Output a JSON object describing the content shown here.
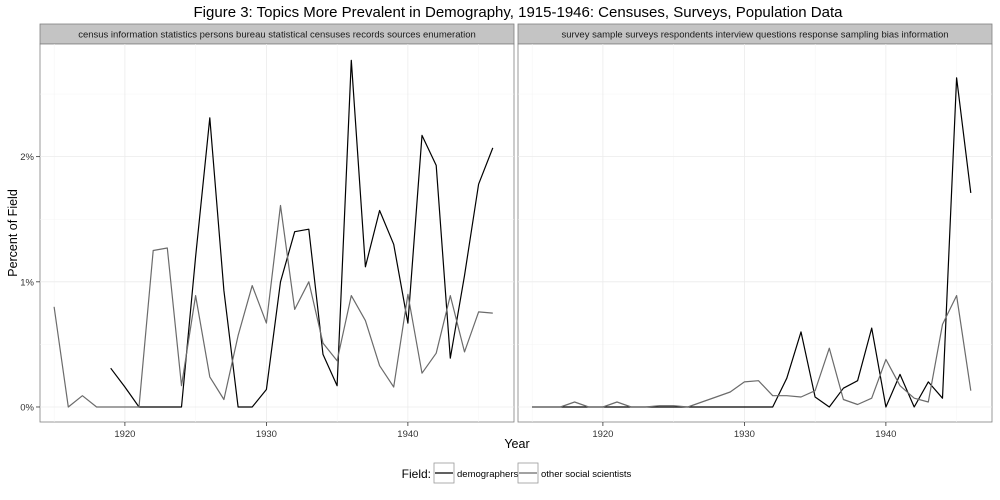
{
  "chart_data": {
    "type": "line",
    "title": "Figure 3: Topics More Prevalent in Demography, 1915-1946: Censuses, Surveys, Population Data",
    "xlabel": "Year",
    "ylabel": "Percent of Field",
    "xlim": [
      1914,
      1947.5
    ],
    "ylim": [
      -0.12,
      2.9
    ],
    "x_ticks": [
      1920,
      1930,
      1940
    ],
    "y_ticks": [
      0,
      1,
      2
    ],
    "y_tick_labels": [
      "0%",
      "1%",
      "2%"
    ],
    "legend": {
      "title": "Field:",
      "position": "bottom",
      "entries": [
        {
          "name": "demographers",
          "color": "#000000"
        },
        {
          "name": "other social scientists",
          "color": "#6b6b6b"
        }
      ]
    },
    "panels": [
      {
        "strip_label": "census information statistics persons bureau statistical censuses records sources enumeration",
        "series": [
          {
            "name": "demographers",
            "color": "#000000",
            "x": [
              1919,
              1920,
              1921,
              1922,
              1923,
              1924,
              1925,
              1926,
              1927,
              1928,
              1929,
              1930,
              1931,
              1932,
              1933,
              1934,
              1935,
              1936,
              1937,
              1938,
              1939,
              1940,
              1941,
              1942,
              1943,
              1944,
              1945,
              1946
            ],
            "y": [
              0.31,
              0.16,
              0.0,
              0.0,
              0.0,
              0.0,
              1.2,
              2.31,
              0.93,
              0.0,
              0.0,
              0.14,
              1.0,
              1.4,
              1.42,
              0.42,
              0.17,
              2.77,
              1.12,
              1.57,
              1.3,
              0.67,
              2.17,
              1.93,
              0.39,
              1.05,
              1.78,
              2.07
            ]
          },
          {
            "name": "other social scientists",
            "color": "#6b6b6b",
            "x": [
              1915,
              1916,
              1917,
              1918,
              1919,
              1920,
              1921,
              1922,
              1923,
              1924,
              1925,
              1926,
              1927,
              1928,
              1929,
              1930,
              1931,
              1932,
              1933,
              1934,
              1935,
              1936,
              1937,
              1938,
              1939,
              1940,
              1941,
              1942,
              1943,
              1944,
              1945,
              1946
            ],
            "y": [
              0.8,
              0.0,
              0.09,
              0.0,
              0.0,
              0.0,
              0.0,
              1.25,
              1.27,
              0.17,
              0.89,
              0.24,
              0.06,
              0.57,
              0.97,
              0.67,
              1.61,
              0.78,
              1.0,
              0.51,
              0.37,
              0.89,
              0.69,
              0.33,
              0.16,
              0.9,
              0.27,
              0.43,
              0.89,
              0.44,
              0.76,
              0.75
            ]
          }
        ]
      },
      {
        "strip_label": "survey sample surveys respondents interview questions response sampling bias information",
        "series": [
          {
            "name": "demographers",
            "color": "#000000",
            "x": [
              1915,
              1916,
              1917,
              1918,
              1919,
              1920,
              1921,
              1922,
              1923,
              1924,
              1925,
              1926,
              1927,
              1928,
              1929,
              1930,
              1931,
              1932,
              1933,
              1934,
              1935,
              1936,
              1937,
              1938,
              1939,
              1940,
              1941,
              1942,
              1943,
              1944,
              1945,
              1946
            ],
            "y": [
              0,
              0,
              0,
              0,
              0,
              0,
              0,
              0,
              0,
              0,
              0,
              0,
              0,
              0,
              0,
              0,
              0,
              0,
              0.23,
              0.6,
              0.08,
              0.0,
              0.15,
              0.21,
              0.63,
              0.0,
              0.26,
              0.0,
              0.2,
              0.07,
              2.63,
              1.71
            ]
          },
          {
            "name": "other social scientists",
            "color": "#6b6b6b",
            "x": [
              1915,
              1916,
              1917,
              1918,
              1919,
              1920,
              1921,
              1922,
              1923,
              1924,
              1925,
              1926,
              1927,
              1928,
              1929,
              1930,
              1931,
              1932,
              1933,
              1934,
              1935,
              1936,
              1937,
              1938,
              1939,
              1940,
              1941,
              1942,
              1943,
              1944,
              1945,
              1946
            ],
            "y": [
              0.0,
              0.0,
              0.0,
              0.04,
              0.0,
              0.0,
              0.04,
              0.0,
              0.0,
              0.01,
              0.01,
              0.0,
              0.04,
              0.08,
              0.12,
              0.2,
              0.21,
              0.09,
              0.09,
              0.08,
              0.13,
              0.47,
              0.06,
              0.02,
              0.07,
              0.38,
              0.17,
              0.07,
              0.04,
              0.66,
              0.89,
              0.13
            ]
          }
        ]
      }
    ]
  }
}
